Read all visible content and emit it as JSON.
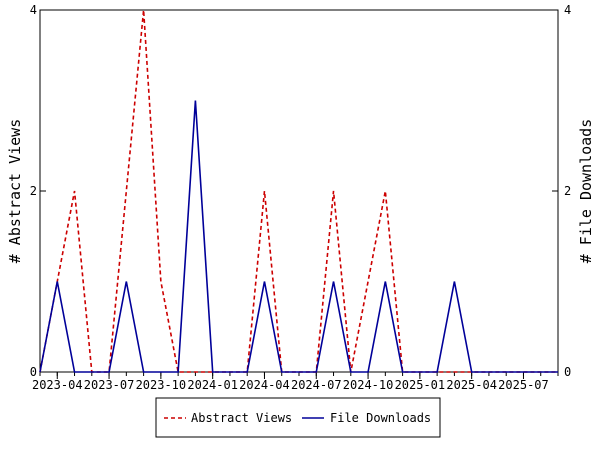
{
  "chart_data": {
    "type": "line",
    "y_left_label": "# Abstract Views",
    "y_right_label": "# File Downloads",
    "x_tick_labels": [
      "2023-04",
      "2023-07",
      "2023-10",
      "2024-01",
      "2024-04",
      "2024-07",
      "2024-10",
      "2025-01",
      "2025-04",
      "2025-07"
    ],
    "y_left_ticks": [
      "0",
      "2",
      "4"
    ],
    "y_right_ticks": [
      "0",
      "2",
      "4"
    ],
    "ylim": [
      0,
      4
    ],
    "x_months": [
      "2023-03",
      "2023-04",
      "2023-05",
      "2023-06",
      "2023-07",
      "2023-08",
      "2023-09",
      "2023-10",
      "2023-11",
      "2023-12",
      "2024-01",
      "2024-02",
      "2024-03",
      "2024-04",
      "2024-05",
      "2024-06",
      "2024-07",
      "2024-08",
      "2024-09",
      "2024-10",
      "2024-11",
      "2024-12",
      "2025-01",
      "2025-02",
      "2025-03",
      "2025-04",
      "2025-05",
      "2025-06",
      "2025-07",
      "2025-08",
      "2025-09"
    ],
    "series": [
      {
        "name": "Abstract Views",
        "color": "#cc0000",
        "dash": true,
        "values": [
          0,
          1,
          2,
          0,
          0,
          2,
          4,
          1,
          0,
          0,
          0,
          0,
          0,
          2,
          0,
          0,
          0,
          2,
          0,
          1,
          2,
          0,
          0,
          0,
          0,
          0,
          0,
          0,
          0,
          0,
          0
        ]
      },
      {
        "name": "File Downloads",
        "color": "#000099",
        "dash": false,
        "values": [
          0,
          1,
          0,
          0,
          0,
          1,
          0,
          0,
          0,
          3,
          0,
          0,
          0,
          1,
          0,
          0,
          0,
          1,
          0,
          0,
          1,
          0,
          0,
          0,
          1,
          0,
          0,
          0,
          0,
          0,
          0
        ]
      }
    ],
    "legend_position": "bottom-center"
  }
}
